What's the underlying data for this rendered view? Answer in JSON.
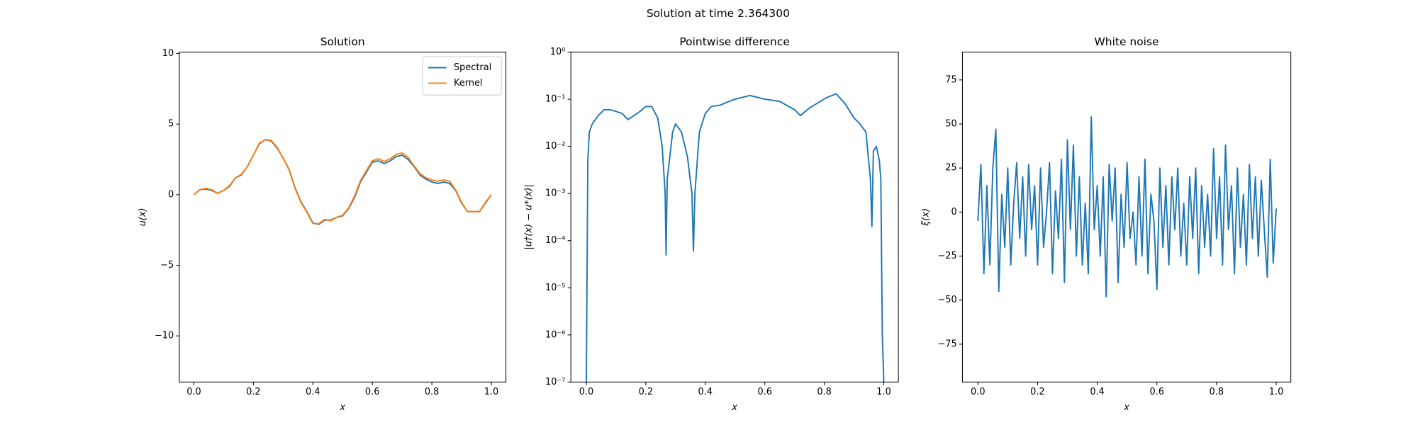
{
  "title": "Solution at time 2.364300",
  "chart_data": [
    {
      "type": "line",
      "title": "Solution",
      "xlabel": "x",
      "ylabel": "u(x)",
      "x": [
        0,
        0.02,
        0.04,
        0.06,
        0.08,
        0.1,
        0.12,
        0.14,
        0.16,
        0.18,
        0.2,
        0.22,
        0.24,
        0.26,
        0.28,
        0.3,
        0.32,
        0.34,
        0.36,
        0.38,
        0.4,
        0.42,
        0.44,
        0.46,
        0.48,
        0.5,
        0.52,
        0.54,
        0.56,
        0.58,
        0.6,
        0.62,
        0.64,
        0.66,
        0.68,
        0.7,
        0.72,
        0.74,
        0.76,
        0.78,
        0.8,
        0.82,
        0.84,
        0.86,
        0.88,
        0.9,
        0.92,
        0.94,
        0.96,
        0.98,
        1.0
      ],
      "series": [
        {
          "name": "Spectral",
          "color": "#1f77b4",
          "values": [
            0,
            0.35,
            0.4,
            0.3,
            0.1,
            0.3,
            0.6,
            1.2,
            1.4,
            2.0,
            2.8,
            3.6,
            3.9,
            3.8,
            3.3,
            2.6,
            1.8,
            0.5,
            -0.5,
            -1.2,
            -2.0,
            -2.1,
            -1.8,
            -1.8,
            -1.6,
            -1.5,
            -1.0,
            -0.2,
            0.9,
            1.6,
            2.3,
            2.4,
            2.2,
            2.4,
            2.7,
            2.8,
            2.5,
            2.0,
            1.4,
            1.1,
            0.9,
            0.8,
            0.9,
            0.8,
            0.3,
            -0.6,
            -1.2,
            -1.2,
            -1.2,
            -0.6,
            0
          ]
        },
        {
          "name": "Kernel",
          "color": "#ff7f0e",
          "values": [
            0,
            0.35,
            0.45,
            0.35,
            0.1,
            0.3,
            0.65,
            1.2,
            1.45,
            2.0,
            2.8,
            3.65,
            3.9,
            3.85,
            3.35,
            2.6,
            1.75,
            0.45,
            -0.55,
            -1.25,
            -2.05,
            -2.05,
            -1.75,
            -1.85,
            -1.6,
            -1.45,
            -0.95,
            -0.1,
            1.0,
            1.7,
            2.4,
            2.55,
            2.35,
            2.55,
            2.85,
            2.95,
            2.65,
            2.05,
            1.5,
            1.2,
            1.05,
            0.95,
            1.05,
            0.95,
            0.35,
            -0.55,
            -1.2,
            -1.2,
            -1.2,
            -0.55,
            0
          ]
        }
      ],
      "xlim": [
        -0.049,
        1.049
      ],
      "ylim": [
        -13.27,
        10.1
      ],
      "xticks": [
        {
          "value": 0,
          "label": "0.0"
        },
        0.2,
        0.4,
        0.6,
        0.8,
        {
          "value": 1,
          "label": "1.0"
        }
      ],
      "yticks": [
        {
          "value": -10,
          "label": "−10"
        },
        {
          "value": -5,
          "label": "−5"
        },
        0,
        5,
        10
      ],
      "legend": "upper right"
    },
    {
      "type": "line",
      "title": "Pointwise difference",
      "xlabel": "x",
      "ylabel": "|u†(x) − u*(x)|",
      "x": [
        0,
        0.005,
        0.01,
        0.02,
        0.04,
        0.06,
        0.08,
        0.1,
        0.12,
        0.14,
        0.16,
        0.18,
        0.2,
        0.22,
        0.24,
        0.255,
        0.265,
        0.268,
        0.272,
        0.29,
        0.3,
        0.32,
        0.34,
        0.355,
        0.36,
        0.365,
        0.38,
        0.4,
        0.42,
        0.45,
        0.48,
        0.5,
        0.55,
        0.6,
        0.65,
        0.7,
        0.72,
        0.75,
        0.78,
        0.81,
        0.84,
        0.87,
        0.9,
        0.92,
        0.94,
        0.955,
        0.96,
        0.965,
        0.975,
        0.985,
        0.99,
        0.995,
        1.0
      ],
      "series": [
        {
          "color": "#1f77b4",
          "values": [
            1e-07,
            0.005,
            0.02,
            0.03,
            0.045,
            0.06,
            0.06,
            0.055,
            0.05,
            0.037,
            0.045,
            0.055,
            0.07,
            0.07,
            0.04,
            0.01,
            0.001,
            5e-05,
            0.002,
            0.02,
            0.03,
            0.02,
            0.006,
            0.001,
            6e-05,
            0.001,
            0.02,
            0.05,
            0.07,
            0.075,
            0.09,
            0.1,
            0.12,
            0.1,
            0.09,
            0.06,
            0.045,
            0.065,
            0.085,
            0.11,
            0.13,
            0.08,
            0.04,
            0.03,
            0.02,
            0.002,
            0.0002,
            0.008,
            0.01,
            0.005,
            0.002,
            1e-06,
            1e-07
          ]
        }
      ],
      "xlim": [
        -0.052,
        1.049
      ],
      "ylim": [
        1e-07,
        1
      ],
      "log_y": true,
      "xticks": [
        {
          "value": 0,
          "label": "0.0"
        },
        0.2,
        0.4,
        0.6,
        0.8,
        {
          "value": 1,
          "label": "1.0"
        }
      ],
      "yticks": [
        {
          "value": 1e-07,
          "label": "10⁻⁷"
        },
        {
          "value": 1e-06,
          "label": "10⁻⁶"
        },
        {
          "value": 1e-05,
          "label": "10⁻⁵"
        },
        {
          "value": 0.0001,
          "label": "10⁻⁴"
        },
        {
          "value": 0.001,
          "label": "10⁻³"
        },
        {
          "value": 0.01,
          "label": "10⁻²"
        },
        {
          "value": 0.1,
          "label": "10⁻¹"
        },
        {
          "value": 1,
          "label": "10⁰"
        }
      ]
    },
    {
      "type": "line",
      "title": "White noise",
      "xlabel": "x",
      "ylabel": "ξ(x)",
      "x": [
        0,
        0.01,
        0.02,
        0.03,
        0.04,
        0.05,
        0.06,
        0.07,
        0.08,
        0.09,
        0.1,
        0.11,
        0.12,
        0.13,
        0.14,
        0.15,
        0.16,
        0.17,
        0.18,
        0.19,
        0.2,
        0.21,
        0.22,
        0.23,
        0.24,
        0.25,
        0.26,
        0.27,
        0.28,
        0.29,
        0.3,
        0.31,
        0.32,
        0.33,
        0.34,
        0.35,
        0.36,
        0.37,
        0.38,
        0.39,
        0.4,
        0.41,
        0.42,
        0.43,
        0.44,
        0.45,
        0.46,
        0.47,
        0.48,
        0.49,
        0.5,
        0.51,
        0.52,
        0.53,
        0.54,
        0.55,
        0.56,
        0.57,
        0.58,
        0.59,
        0.6,
        0.61,
        0.62,
        0.63,
        0.64,
        0.65,
        0.66,
        0.67,
        0.68,
        0.69,
        0.7,
        0.71,
        0.72,
        0.73,
        0.74,
        0.75,
        0.76,
        0.77,
        0.78,
        0.79,
        0.8,
        0.81,
        0.82,
        0.83,
        0.84,
        0.85,
        0.86,
        0.87,
        0.88,
        0.89,
        0.9,
        0.91,
        0.92,
        0.93,
        0.94,
        0.95,
        0.96,
        0.97,
        0.98,
        0.99,
        1.0
      ],
      "series": [
        {
          "color": "#1f77b4",
          "values": [
            -5,
            27,
            -35,
            15,
            -30,
            25,
            47,
            -45,
            10,
            -20,
            25,
            -30,
            5,
            28,
            -15,
            20,
            -25,
            27,
            -10,
            15,
            -30,
            25,
            -20,
            0,
            28,
            -35,
            12,
            -15,
            30,
            -40,
            41,
            -10,
            38,
            -25,
            20,
            -30,
            5,
            -35,
            54,
            -10,
            15,
            -25,
            20,
            -48,
            27,
            -5,
            25,
            -40,
            10,
            -20,
            28,
            -15,
            0,
            -30,
            20,
            -25,
            30,
            -35,
            10,
            -5,
            -44,
            25,
            -20,
            15,
            -30,
            20,
            -10,
            25,
            -25,
            5,
            -30,
            20,
            -15,
            25,
            -35,
            15,
            -20,
            10,
            -25,
            36,
            -15,
            20,
            -30,
            38,
            -10,
            15,
            -35,
            25,
            -20,
            10,
            -30,
            27,
            -15,
            20,
            -25,
            18,
            -10,
            -37,
            30,
            -29,
            2
          ]
        }
      ],
      "xlim": [
        -0.052,
        1.049
      ],
      "ylim": [
        -96.5,
        90.8
      ],
      "xticks": [
        {
          "value": 0,
          "label": "0.0"
        },
        0.2,
        0.4,
        0.6,
        0.8,
        {
          "value": 1,
          "label": "1.0"
        }
      ],
      "yticks": [
        {
          "value": -75,
          "label": "−75"
        },
        {
          "value": -50,
          "label": "−50"
        },
        {
          "value": -25,
          "label": "−25"
        },
        0,
        25,
        50,
        75
      ]
    }
  ]
}
